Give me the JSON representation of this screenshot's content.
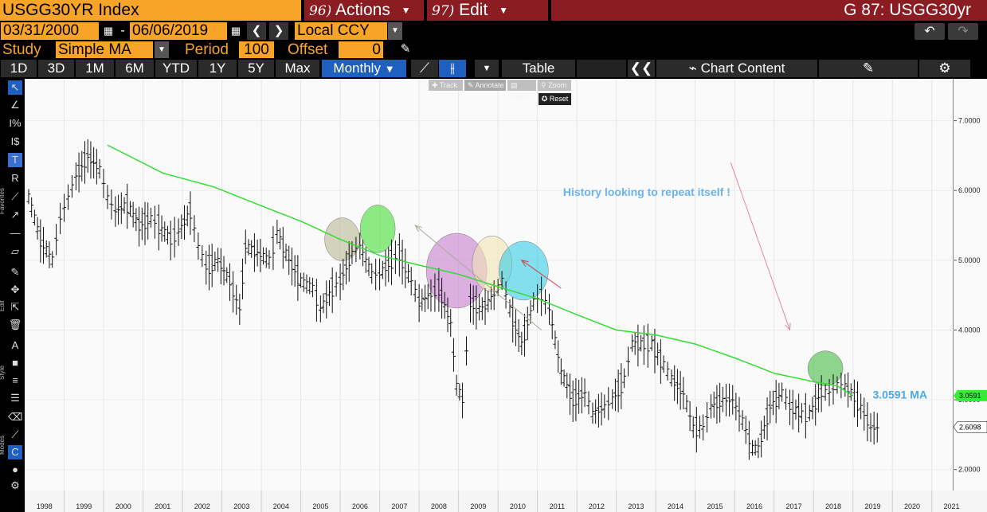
{
  "header": {
    "ticker": "USGG30YR Index",
    "actions_num": "96)",
    "actions_label": "Actions",
    "edit_num": "97)",
    "edit_label": "Edit",
    "function_title": "G 87: USGG30yr"
  },
  "dates": {
    "start": "03/31/2000",
    "sep": "-",
    "end": "06/06/2019",
    "currency": "Local CCY"
  },
  "study": {
    "label": "Study",
    "type": "Simple MA",
    "period_label": "Period",
    "period": "100",
    "offset_label": "Offset",
    "offset": "0"
  },
  "toolbar": {
    "periods": [
      "1D",
      "3D",
      "1M",
      "6M",
      "YTD",
      "1Y",
      "5Y",
      "Max"
    ],
    "frequency": "Monthly",
    "table_label": "Table",
    "chart_content_label": "Chart Content"
  },
  "toolbox": {
    "track": "Track",
    "annotate": "Annotate",
    "news": "News",
    "zoom": "Zoom",
    "reset": "Reset"
  },
  "sidebar_labels": {
    "favorites": "Favorites",
    "edit": "Edit",
    "style": "Style",
    "modes": "Modes"
  },
  "annotations": {
    "note": "History looking to repeat itself !",
    "ma_label": "3.0591 MA"
  },
  "price_tags": {
    "ma": "3.0591",
    "last": "2.6098"
  },
  "colors": {
    "orange": "#f7a428",
    "maroon": "#8b1c21",
    "ma_line": "#33dd33",
    "ma_text": "#4aa8e8",
    "note_text": "#6ab4ec"
  },
  "chart_data": {
    "type": "line",
    "ytick_labels": [
      "7.0000",
      "6.0000",
      "5.0000",
      "4.0000",
      "3.0000",
      "2.0000"
    ],
    "yticks": [
      7,
      6,
      5,
      4,
      3,
      2
    ],
    "ylim": [
      1.7,
      7.6
    ],
    "xtick_labels": [
      "1998",
      "1999",
      "2000",
      "2001",
      "2002",
      "2003",
      "2004",
      "2005",
      "2006",
      "2007",
      "2008",
      "2009",
      "2010",
      "2011",
      "2012",
      "2013",
      "2014",
      "2015",
      "2016",
      "2017",
      "2018",
      "2019",
      "2020",
      "2021"
    ],
    "xlim": [
      1998.0,
      2021.55
    ],
    "series": [
      {
        "style": "ohlc-bars",
        "color": "#111111",
        "t": [
          1998.1,
          1998.4,
          1998.7,
          1998.9,
          1999.1,
          1999.3,
          1999.6,
          1999.9,
          2000.1,
          2000.3,
          2000.6,
          2000.9,
          2001.2,
          2001.4,
          2001.7,
          2001.9,
          2002.2,
          2002.4,
          2002.6,
          2002.9,
          2003.2,
          2003.45,
          2003.6,
          2003.9,
          2004.2,
          2004.4,
          2004.7,
          2005.0,
          2005.3,
          2005.5,
          2005.8,
          2006.0,
          2006.3,
          2006.5,
          2006.8,
          2007.0,
          2007.3,
          2007.5,
          2007.8,
          2008.0,
          2008.3,
          2008.5,
          2008.8,
          2008.95,
          2009.1,
          2009.3,
          2009.6,
          2009.9,
          2010.1,
          2010.3,
          2010.6,
          2010.9,
          2011.1,
          2011.3,
          2011.6,
          2011.9,
          2012.2,
          2012.4,
          2012.7,
          2012.9,
          2013.2,
          2013.4,
          2013.7,
          2013.9,
          2014.2,
          2014.4,
          2014.7,
          2014.95,
          2015.2,
          2015.4,
          2015.7,
          2015.95,
          2016.2,
          2016.45,
          2016.6,
          2016.9,
          2017.2,
          2017.4,
          2017.7,
          2017.9,
          2018.2,
          2018.4,
          2018.6,
          2018.8,
          2018.95,
          2019.2,
          2019.45
        ],
        "v": [
          5.9,
          5.3,
          5.0,
          5.6,
          5.9,
          6.2,
          6.5,
          6.3,
          5.9,
          5.7,
          5.8,
          5.5,
          5.6,
          5.5,
          5.3,
          5.4,
          5.7,
          5.2,
          4.9,
          5.0,
          4.7,
          4.3,
          5.2,
          5.1,
          5.0,
          5.4,
          5.0,
          4.7,
          4.6,
          4.3,
          4.6,
          4.7,
          5.1,
          5.2,
          4.8,
          4.8,
          5.0,
          5.1,
          4.7,
          4.4,
          4.5,
          4.6,
          4.1,
          3.2,
          3.0,
          4.4,
          4.3,
          4.5,
          4.7,
          4.3,
          3.8,
          4.4,
          4.5,
          4.3,
          3.4,
          3.0,
          3.1,
          2.8,
          2.9,
          3.0,
          3.3,
          3.8,
          3.8,
          3.8,
          3.5,
          3.3,
          3.1,
          2.6,
          2.6,
          2.9,
          3.0,
          3.0,
          2.7,
          2.3,
          2.3,
          2.9,
          3.1,
          2.9,
          2.8,
          2.8,
          3.1,
          3.1,
          3.2,
          3.2,
          3.1,
          2.9,
          2.6
        ]
      },
      {
        "name": "MA",
        "style": "line",
        "color": "#33dd33",
        "t": [
          2000.1,
          2001.5,
          2002.8,
          2004.0,
          2005.0,
          2006.0,
          2007.0,
          2008.0,
          2009.0,
          2010.0,
          2011.0,
          2012.0,
          2013.0,
          2014.0,
          2015.0,
          2016.0,
          2016.6,
          2017.0,
          2018.0,
          2018.6,
          2019.0
        ],
        "v": [
          6.65,
          6.25,
          6.05,
          5.78,
          5.56,
          5.3,
          5.07,
          4.93,
          4.8,
          4.62,
          4.45,
          4.22,
          4.0,
          3.93,
          3.8,
          3.6,
          3.47,
          3.38,
          3.26,
          3.2,
          3.06
        ]
      }
    ],
    "highlight_circles": [
      {
        "t": 2006.05,
        "v": 5.3,
        "color": "#b8b894"
      },
      {
        "t": 2006.95,
        "v": 5.45,
        "color": "#44dd33"
      },
      {
        "t": 2008.95,
        "v": 4.85,
        "color": "#c77fd1"
      },
      {
        "t": 2009.85,
        "v": 4.95,
        "color": "#f2e5b2"
      },
      {
        "t": 2010.65,
        "v": 4.85,
        "color": "#33cce6"
      },
      {
        "t": 2018.3,
        "v": 3.45,
        "color": "#44bb44"
      }
    ],
    "arrows": [
      {
        "t1": 2011.1,
        "v1": 4.0,
        "t2": 2007.9,
        "v2": 5.5,
        "color": "#aaaa99"
      },
      {
        "t1": 2011.6,
        "v1": 4.6,
        "t2": 2010.6,
        "v2": 5.0,
        "color": "#cc4444"
      },
      {
        "t1": 2015.9,
        "v1": 6.4,
        "t2": 2017.4,
        "v2": 4.0,
        "color": "#dd88aa"
      }
    ]
  }
}
